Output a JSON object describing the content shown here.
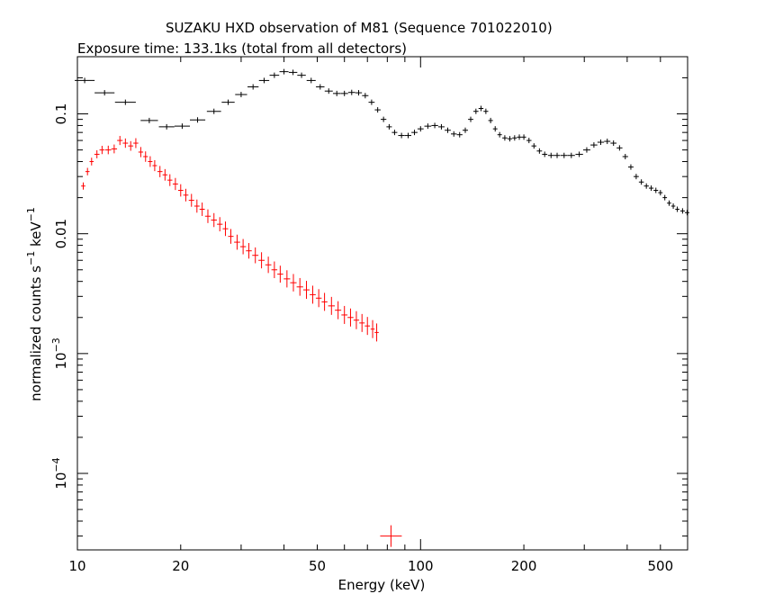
{
  "chart_data": {
    "type": "scatter",
    "title": "SUZAKU HXD observation of M81 (Sequence 701022010)",
    "subtitle": "Exposure time: 133.1ks (total from all detectors)",
    "xlabel": "Energy (keV)",
    "ylabel": {
      "text": "normalized counts s",
      "sup1": "−1",
      "mid": " keV",
      "sup2": "−1"
    },
    "xscale": "log",
    "yscale": "log",
    "xlim": [
      10,
      600
    ],
    "ylim": [
      2.3e-05,
      0.3
    ],
    "x_ticks": [
      {
        "value": 10,
        "label": "10"
      },
      {
        "value": 20,
        "label": "20"
      },
      {
        "value": 50,
        "label": "50"
      },
      {
        "value": 100,
        "label": "100"
      },
      {
        "value": 200,
        "label": "200"
      },
      {
        "value": 500,
        "label": "500"
      }
    ],
    "y_ticks": [
      {
        "value": 0.1,
        "base": "0.1",
        "exp": ""
      },
      {
        "value": 0.01,
        "base": "0.01",
        "exp": ""
      },
      {
        "value": 0.001,
        "base": "10",
        "exp": "−3"
      },
      {
        "value": 0.0001,
        "base": "10",
        "exp": "−4"
      }
    ],
    "grid": false,
    "colors": {
      "black_series": "#000000",
      "red_series": "#ff0000"
    },
    "series": [
      {
        "color": "#000000",
        "points": [
          [
            10.5,
            0.19
          ],
          [
            12.0,
            0.15
          ],
          [
            13.8,
            0.125
          ],
          [
            16.2,
            0.088
          ],
          [
            18.2,
            0.078
          ],
          [
            20.2,
            0.079
          ],
          [
            22.4,
            0.089
          ],
          [
            25.0,
            0.105
          ],
          [
            27.5,
            0.125
          ],
          [
            30.0,
            0.145
          ],
          [
            32.5,
            0.168
          ],
          [
            35.0,
            0.19
          ],
          [
            37.5,
            0.21
          ],
          [
            40.0,
            0.225
          ],
          [
            42.5,
            0.222
          ],
          [
            45.0,
            0.21
          ],
          [
            48.0,
            0.19
          ],
          [
            51.0,
            0.168
          ],
          [
            54.0,
            0.155
          ],
          [
            57.0,
            0.148
          ],
          [
            60.0,
            0.148
          ],
          [
            63.0,
            0.151
          ],
          [
            66.0,
            0.15
          ],
          [
            69.0,
            0.142
          ],
          [
            72.0,
            0.125
          ],
          [
            75.0,
            0.108
          ],
          [
            78.0,
            0.09
          ],
          [
            81.0,
            0.078
          ],
          [
            84.0,
            0.07
          ],
          [
            88.0,
            0.066
          ],
          [
            92.0,
            0.066
          ],
          [
            96.0,
            0.07
          ],
          [
            100.0,
            0.075
          ],
          [
            105.0,
            0.079
          ],
          [
            110.0,
            0.08
          ],
          [
            115.0,
            0.078
          ],
          [
            120.0,
            0.073
          ],
          [
            125.0,
            0.068
          ],
          [
            130.0,
            0.067
          ],
          [
            135.0,
            0.073
          ],
          [
            140.0,
            0.09
          ],
          [
            145.0,
            0.105
          ],
          [
            150.0,
            0.111
          ],
          [
            155.0,
            0.105
          ],
          [
            160.0,
            0.088
          ],
          [
            165.0,
            0.075
          ],
          [
            170.0,
            0.067
          ],
          [
            176.0,
            0.063
          ],
          [
            182.0,
            0.062
          ],
          [
            188.0,
            0.063
          ],
          [
            194.0,
            0.064
          ],
          [
            200.0,
            0.064
          ],
          [
            207.0,
            0.06
          ],
          [
            214.0,
            0.054
          ],
          [
            222.0,
            0.049
          ],
          [
            230.0,
            0.046
          ],
          [
            240.0,
            0.045
          ],
          [
            250.0,
            0.045
          ],
          [
            262.0,
            0.045
          ],
          [
            275.0,
            0.045
          ],
          [
            290.0,
            0.046
          ],
          [
            305.0,
            0.05
          ],
          [
            320.0,
            0.055
          ],
          [
            335.0,
            0.058
          ],
          [
            350.0,
            0.059
          ],
          [
            365.0,
            0.057
          ],
          [
            380.0,
            0.052
          ],
          [
            395.0,
            0.044
          ],
          [
            410.0,
            0.036
          ],
          [
            425.0,
            0.03
          ],
          [
            440.0,
            0.027
          ],
          [
            455.0,
            0.025
          ],
          [
            470.0,
            0.024
          ],
          [
            485.0,
            0.023
          ],
          [
            500.0,
            0.022
          ],
          [
            515.0,
            0.02
          ],
          [
            530.0,
            0.018
          ],
          [
            545.0,
            0.017
          ],
          [
            560.0,
            0.016
          ],
          [
            580.0,
            0.0155
          ],
          [
            598.0,
            0.015
          ]
        ]
      },
      {
        "color": "#ff0000",
        "points": [
          [
            10.4,
            0.025
          ],
          [
            10.7,
            0.033
          ],
          [
            11.0,
            0.04
          ],
          [
            11.4,
            0.046
          ],
          [
            11.8,
            0.05
          ],
          [
            12.3,
            0.05
          ],
          [
            12.8,
            0.051
          ],
          [
            13.3,
            0.06
          ],
          [
            13.8,
            0.057
          ],
          [
            14.3,
            0.054
          ],
          [
            14.8,
            0.057
          ],
          [
            15.3,
            0.048
          ],
          [
            15.8,
            0.044
          ],
          [
            16.3,
            0.04
          ],
          [
            16.8,
            0.037
          ],
          [
            17.4,
            0.033
          ],
          [
            18.0,
            0.031
          ],
          [
            18.6,
            0.028
          ],
          [
            19.3,
            0.026
          ],
          [
            20.0,
            0.023
          ],
          [
            20.7,
            0.021
          ],
          [
            21.5,
            0.019
          ],
          [
            22.3,
            0.017
          ],
          [
            23.1,
            0.016
          ],
          [
            24.0,
            0.014
          ],
          [
            25.0,
            0.013
          ],
          [
            26.0,
            0.012
          ],
          [
            27.0,
            0.011
          ],
          [
            28.0,
            0.0095
          ],
          [
            29.2,
            0.0085
          ],
          [
            30.4,
            0.0078
          ],
          [
            31.6,
            0.0072
          ],
          [
            33.0,
            0.0066
          ],
          [
            34.4,
            0.006
          ],
          [
            36.0,
            0.0055
          ],
          [
            37.5,
            0.005
          ],
          [
            39.0,
            0.0046
          ],
          [
            40.8,
            0.0042
          ],
          [
            42.6,
            0.0039
          ],
          [
            44.5,
            0.0036
          ],
          [
            46.5,
            0.0034
          ],
          [
            48.5,
            0.0031
          ],
          [
            50.5,
            0.0029
          ],
          [
            52.5,
            0.0027
          ],
          [
            55.0,
            0.0025
          ],
          [
            57.5,
            0.0023
          ],
          [
            60.0,
            0.0021
          ],
          [
            62.5,
            0.002
          ],
          [
            65.0,
            0.0019
          ],
          [
            67.5,
            0.0018
          ],
          [
            70.0,
            0.0017
          ],
          [
            72.5,
            0.0016
          ],
          [
            74.5,
            0.0015
          ],
          [
            82.0,
            3e-05
          ]
        ]
      }
    ]
  }
}
